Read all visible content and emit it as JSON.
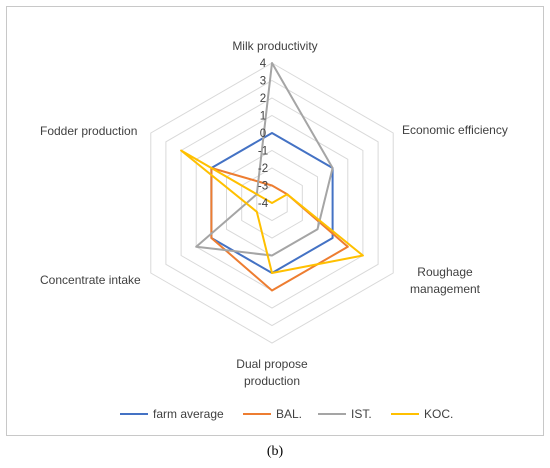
{
  "caption": "(b)",
  "chart_data": {
    "type": "radar",
    "axes": [
      "Milk productivity",
      "Economic efficiency",
      "Roughage management",
      "Dual propose production",
      "Concentrate intake",
      "Fodder production"
    ],
    "axis_label_lines": [
      [
        "Milk productivity"
      ],
      [
        "Economic efficiency"
      ],
      [
        "Roughage",
        "management"
      ],
      [
        "Dual propose",
        "production"
      ],
      [
        "Concentrate intake"
      ],
      [
        "Fodder production"
      ]
    ],
    "range": [
      -4,
      4
    ],
    "ticks": [
      4,
      3,
      2,
      1,
      0,
      -1,
      -2,
      -3,
      -4
    ],
    "tick_labels": [
      "4",
      "3",
      "2",
      "1",
      "0",
      "-1",
      "-2",
      "-3",
      "-4"
    ],
    "grid": true,
    "legend_position": "bottom",
    "series": [
      {
        "name": "farm average",
        "color": "#4472C4",
        "values": [
          0,
          0,
          0,
          0,
          0,
          0
        ]
      },
      {
        "name": "BAL.",
        "color": "#ED7D31",
        "values": [
          -3,
          -3,
          1,
          1,
          0,
          0
        ]
      },
      {
        "name": "IST.",
        "color": "#A5A5A5",
        "values": [
          4,
          0,
          -1,
          -1,
          1,
          -3
        ]
      },
      {
        "name": "KOC.",
        "color": "#FFC000",
        "values": [
          -4,
          -3,
          2,
          0,
          -3,
          2
        ]
      }
    ]
  }
}
